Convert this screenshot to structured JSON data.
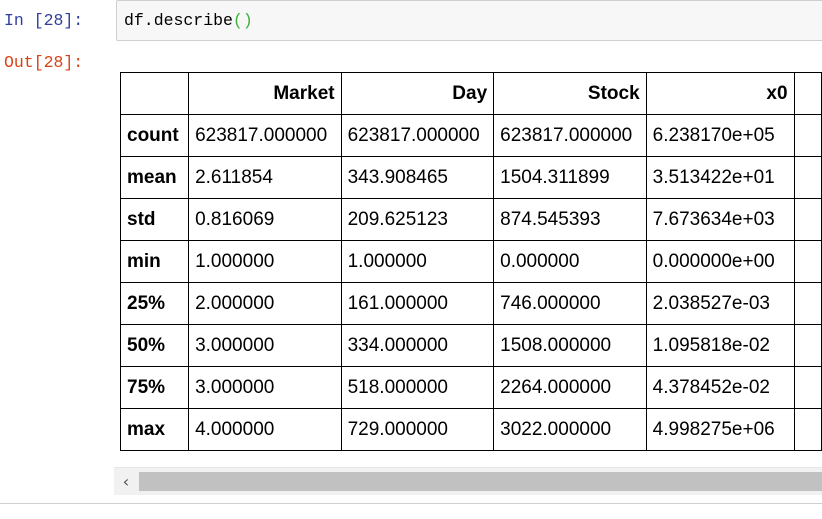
{
  "input_cell": {
    "prompt": "In [28]:",
    "code_text": "df.describe",
    "code_parens": "()"
  },
  "output_cell": {
    "prompt": "Out[28]:",
    "table": {
      "columns": [
        "Market",
        "Day",
        "Stock",
        "x0"
      ],
      "rows": [
        {
          "label": "count",
          "values": [
            "623817.000000",
            "623817.000000",
            "623817.000000",
            "6.238170e+05"
          ]
        },
        {
          "label": "mean",
          "values": [
            "2.611854",
            "343.908465",
            "1504.311899",
            "3.513422e+01"
          ]
        },
        {
          "label": "std",
          "values": [
            "0.816069",
            "209.625123",
            "874.545393",
            "7.673634e+03"
          ]
        },
        {
          "label": "min",
          "values": [
            "1.000000",
            "1.000000",
            "0.000000",
            "0.000000e+00"
          ]
        },
        {
          "label": "25%",
          "values": [
            "2.000000",
            "161.000000",
            "746.000000",
            "2.038527e-03"
          ]
        },
        {
          "label": "50%",
          "values": [
            "3.000000",
            "334.000000",
            "1508.000000",
            "1.095818e-02"
          ]
        },
        {
          "label": "75%",
          "values": [
            "3.000000",
            "518.000000",
            "2264.000000",
            "4.378452e-02"
          ]
        },
        {
          "label": "max",
          "values": [
            "4.000000",
            "729.000000",
            "3022.000000",
            "4.998275e+06"
          ]
        }
      ]
    }
  },
  "scrollbar": {
    "left_arrow": "‹"
  }
}
